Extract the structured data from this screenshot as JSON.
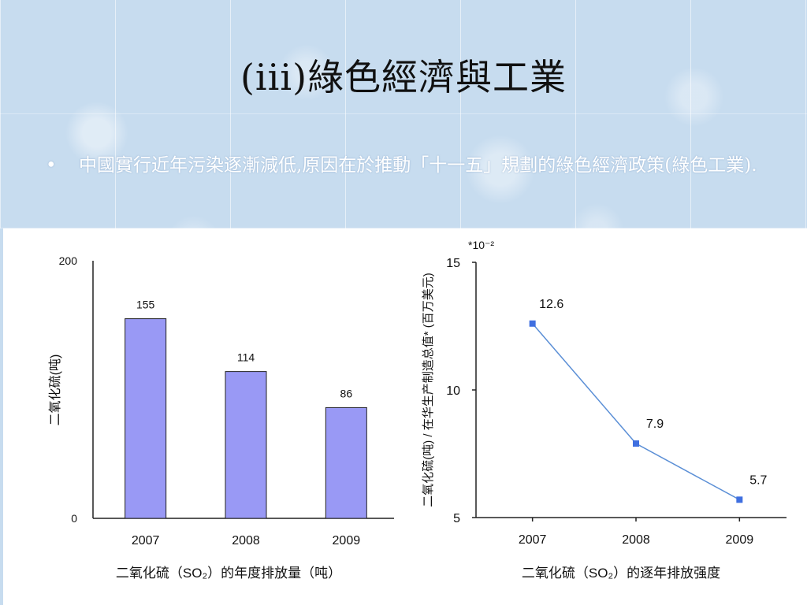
{
  "slide": {
    "title": "(iii)綠色經濟與工業",
    "bullet_symbol": "•",
    "bullet_text": "中國實行近年污染逐漸減低,原因在於推動「十一五」規劃的綠色經濟政策(綠色工業)."
  },
  "chart_data": [
    {
      "type": "bar",
      "categories": [
        "2007",
        "2008",
        "2009"
      ],
      "values": [
        155,
        114,
        86
      ],
      "data_labels": [
        "155",
        "114",
        "86"
      ],
      "ylim": [
        0,
        200
      ],
      "yticks": [
        0,
        200
      ],
      "ylabel": "二氧化硫(吨)",
      "xlabel": "",
      "caption": "二氧化硫（SO₂）的年度排放量（吨）",
      "bar_color": "#9999f5",
      "grid": false
    },
    {
      "type": "line",
      "categories": [
        "2007",
        "2008",
        "2009"
      ],
      "values": [
        12.6,
        7.9,
        5.7
      ],
      "data_labels": [
        "12.6",
        "7.9",
        "5.7"
      ],
      "ylim": [
        5,
        15
      ],
      "yticks": [
        5,
        10,
        15
      ],
      "scale_note": "*10⁻²",
      "ylabel": "二氧化硫(吨) / 在华生产制造总值* (百万美元)",
      "xlabel": "",
      "caption": "二氧化硫（SO₂）的逐年排放强度",
      "line_color": "#5b8fd6",
      "marker_color": "#3f6fe0",
      "grid": false
    }
  ]
}
